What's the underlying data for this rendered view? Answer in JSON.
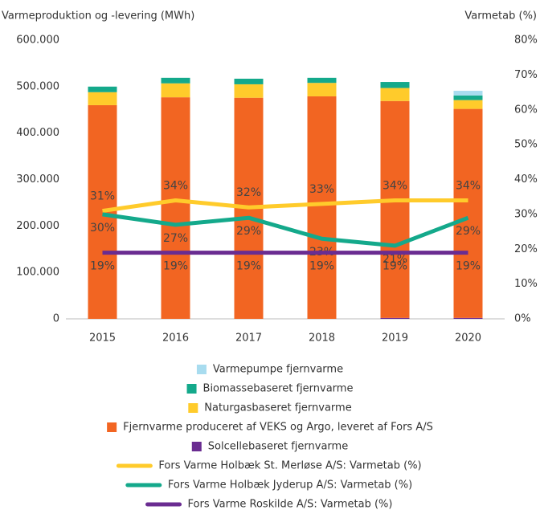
{
  "chart_data": {
    "type": "bar",
    "stacked": true,
    "ylabel": "Varmeproduktion og -levering (MWh)",
    "y2label": "Varmetab (%)",
    "categories": [
      "2015",
      "2016",
      "2017",
      "2018",
      "2019",
      "2020"
    ],
    "ylim": [
      0,
      600000
    ],
    "yticks": [
      {
        "value": 0,
        "label": "0"
      },
      {
        "value": 100000,
        "label": "100.000"
      },
      {
        "value": 200000,
        "label": "200.000"
      },
      {
        "value": 300000,
        "label": "300.000"
      },
      {
        "value": 400000,
        "label": "400.000"
      },
      {
        "value": 500000,
        "label": "500.000"
      },
      {
        "value": 600000,
        "label": "600.000"
      }
    ],
    "y2lim": [
      0,
      80
    ],
    "y2ticks": [
      {
        "value": 0,
        "label": "0%"
      },
      {
        "value": 10,
        "label": "10%"
      },
      {
        "value": 20,
        "label": "20%"
      },
      {
        "value": 30,
        "label": "30%"
      },
      {
        "value": 40,
        "label": "40%"
      },
      {
        "value": 50,
        "label": "50%"
      },
      {
        "value": 60,
        "label": "60%"
      },
      {
        "value": 70,
        "label": "70%"
      },
      {
        "value": 80,
        "label": "80%"
      }
    ],
    "series": [
      {
        "name": "Solcellebaseret fjernvarme",
        "type": "bar",
        "color": "#6a2c91",
        "values": [
          0,
          0,
          0,
          0,
          2000,
          2000
        ]
      },
      {
        "name": "Fjernvarme produceret af VEKS og Argo, leveret af Fors A/S",
        "type": "bar",
        "color": "#f26522",
        "values": [
          460000,
          477000,
          476000,
          479000,
          467000,
          450000
        ]
      },
      {
        "name": "Naturgasbaseret fjernvarme",
        "type": "bar",
        "color": "#ffcb2b",
        "values": [
          28000,
          30000,
          29000,
          29000,
          28000,
          19000
        ]
      },
      {
        "name": "Biomassebaseret fjernvarme",
        "type": "bar",
        "color": "#14a98b",
        "values": [
          12000,
          12000,
          12000,
          11000,
          13000,
          10000
        ]
      },
      {
        "name": "Varmepumpe fjernvarme",
        "type": "bar",
        "color": "#a8dcef",
        "values": [
          0,
          0,
          0,
          0,
          0,
          10000
        ]
      },
      {
        "name": "Fors Varme Holbæk St. Merløse A/S: Varmetab (%)",
        "type": "line",
        "axis": "y2",
        "color": "#ffcb2b",
        "values": [
          31,
          34,
          32,
          33,
          34,
          34
        ],
        "value_labels": [
          "31%",
          "34%",
          "32%",
          "33%",
          "34%",
          "34%"
        ]
      },
      {
        "name": "Fors Varme Holbæk Jyderup A/S: Varmetab (%)",
        "type": "line",
        "axis": "y2",
        "color": "#14a98b",
        "values": [
          30,
          27,
          29,
          23,
          21,
          29
        ],
        "value_labels": [
          "30%",
          "27%",
          "29%",
          "23%",
          "21%",
          "29%"
        ]
      },
      {
        "name": "Fors Varme Roskilde A/S: Varmetab (%)",
        "type": "line",
        "axis": "y2",
        "color": "#6a2c91",
        "values": [
          19,
          19,
          19,
          19,
          19,
          19
        ],
        "value_labels": [
          "19%",
          "19%",
          "19%",
          "19%",
          "19%",
          "19%"
        ]
      }
    ]
  }
}
